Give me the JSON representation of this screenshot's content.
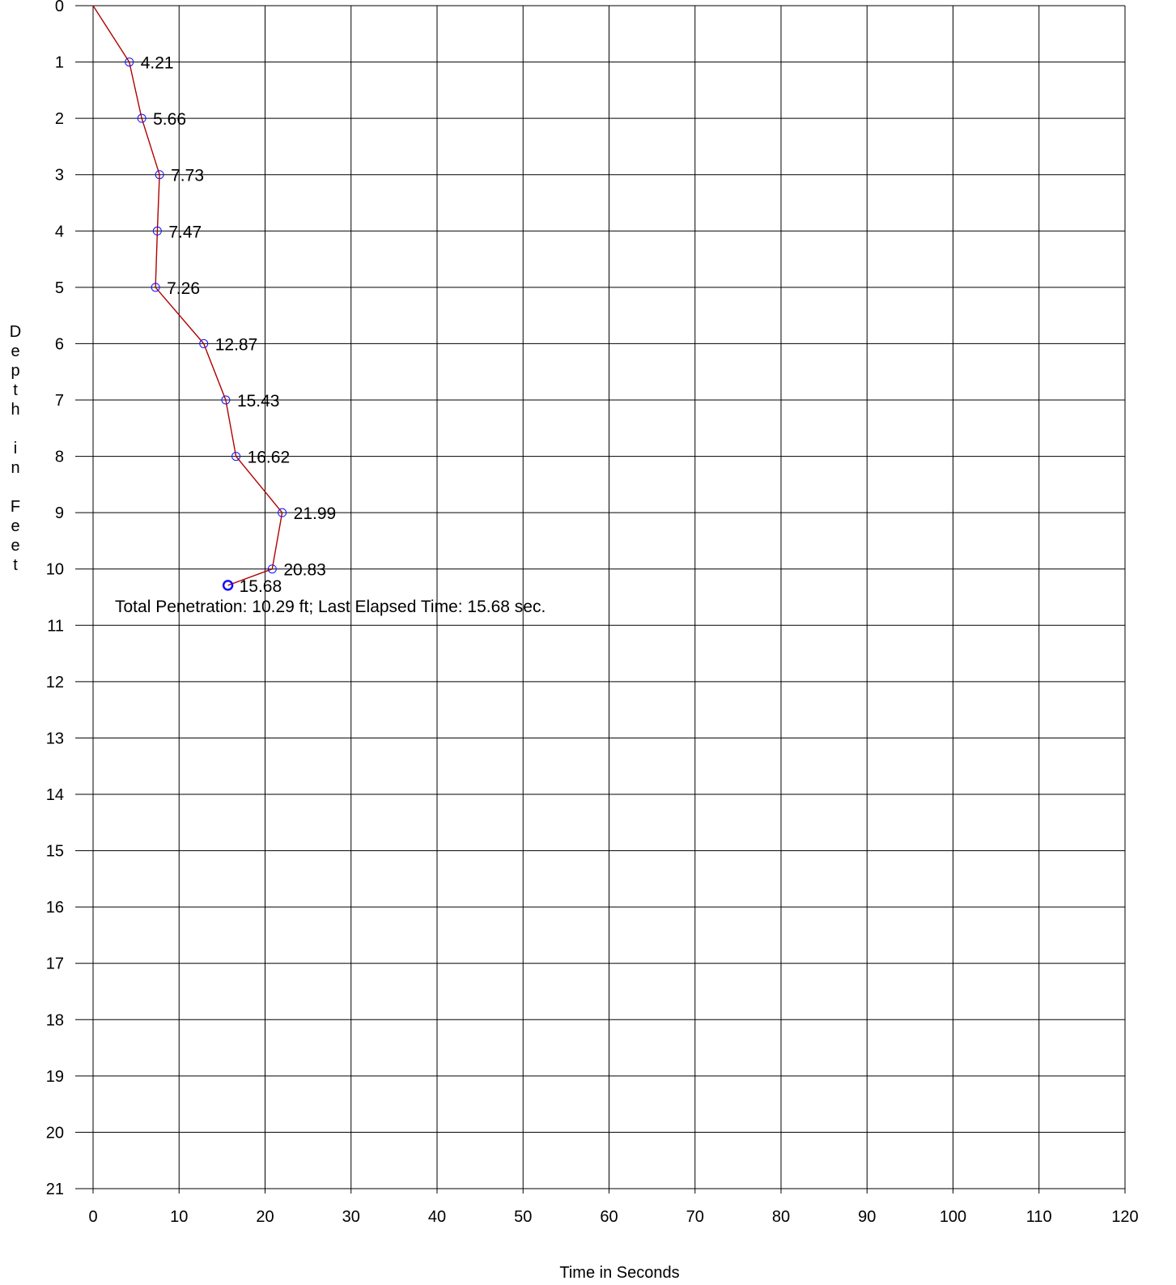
{
  "chart_data": {
    "type": "line",
    "title": "",
    "xlabel": "Time in Seconds",
    "ylabel": "Depth in Feet",
    "xlim": [
      0,
      120
    ],
    "ylim": [
      0,
      21
    ],
    "y_inverted": true,
    "x_ticks": [
      0,
      10,
      20,
      30,
      40,
      50,
      60,
      70,
      80,
      90,
      100,
      110,
      120
    ],
    "y_ticks": [
      0,
      1,
      2,
      3,
      4,
      5,
      6,
      7,
      8,
      9,
      10,
      11,
      12,
      13,
      14,
      15,
      16,
      17,
      18,
      19,
      20,
      21
    ],
    "grid": true,
    "series": [
      {
        "color": "#b00000",
        "marker_color": "#1010ff",
        "points": [
          {
            "x": 0,
            "y": 0,
            "label": ""
          },
          {
            "x": 4.21,
            "y": 1,
            "label": "4.21"
          },
          {
            "x": 5.66,
            "y": 2,
            "label": "5.66"
          },
          {
            "x": 7.73,
            "y": 3,
            "label": "7.73"
          },
          {
            "x": 7.47,
            "y": 4,
            "label": "7.47"
          },
          {
            "x": 7.26,
            "y": 5,
            "label": "7.26"
          },
          {
            "x": 12.87,
            "y": 6,
            "label": "12.87"
          },
          {
            "x": 15.43,
            "y": 7,
            "label": "15.43"
          },
          {
            "x": 16.62,
            "y": 8,
            "label": "16.62"
          },
          {
            "x": 21.99,
            "y": 9,
            "label": "21.99"
          },
          {
            "x": 20.83,
            "y": 10,
            "label": "20.83"
          },
          {
            "x": 15.68,
            "y": 10.29,
            "label": "15.68"
          }
        ]
      }
    ],
    "annotation": "Total Penetration:  10.29 ft; Last Elapsed Time:  15.68 sec."
  }
}
